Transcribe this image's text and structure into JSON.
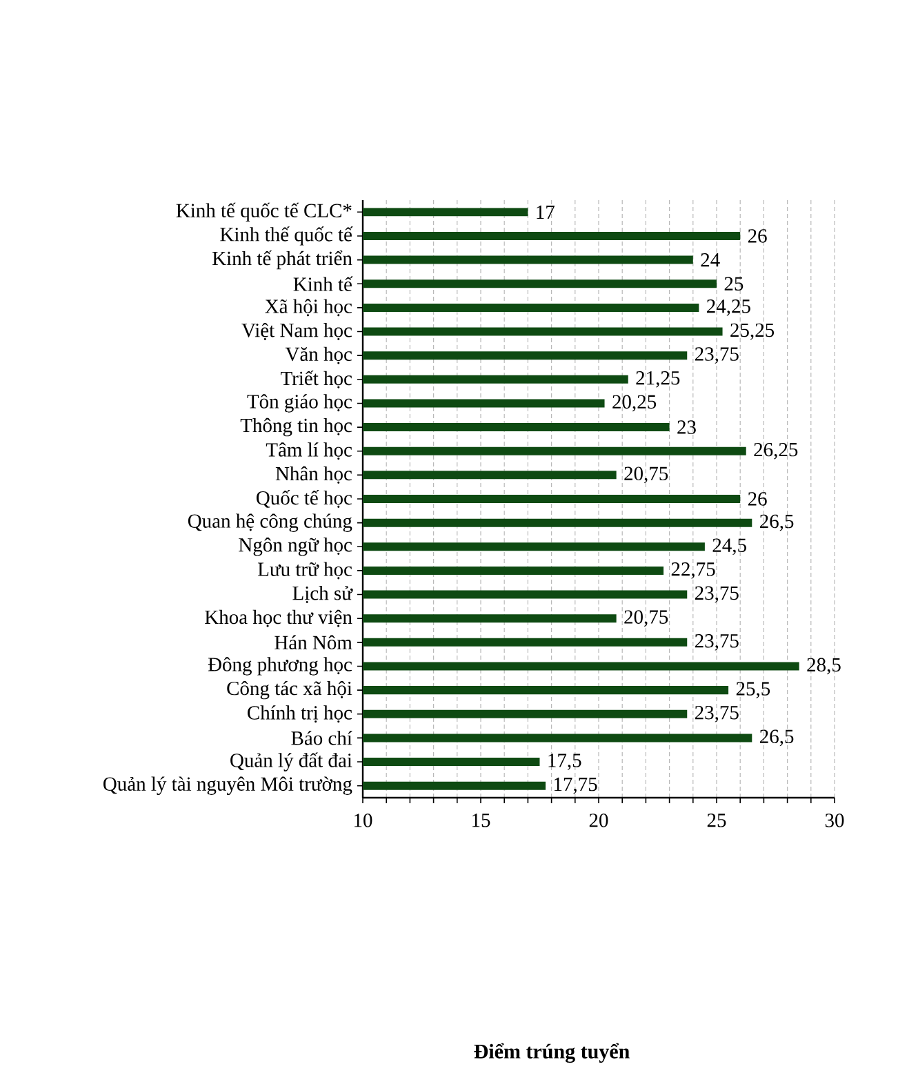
{
  "chart_data": {
    "type": "bar",
    "orientation": "horizontal",
    "annotations": [
      "Điểm trúng tuyển"
    ],
    "categories": [
      "Kinh tế quốc tế CLC*",
      "Kinh thế quốc tế",
      "Kinh tế phát triển",
      "Kinh tế",
      "Xã hội học",
      "Việt Nam học",
      "Văn học",
      "Triết học",
      "Tôn giáo học",
      "Thông tin học",
      "Tâm lí học",
      "Nhân học",
      "Quốc tế học",
      "Quan hệ công chúng",
      "Ngôn ngữ học",
      "Lưu trữ học",
      "Lịch sử",
      "Khoa học thư viện",
      "Hán Nôm",
      "Đông phương học",
      "Công tác xã hội",
      "Chính trị học",
      "Báo chí",
      "Quản lý đất đai",
      "Quản lý tài nguyên Môi trường"
    ],
    "values": [
      17,
      26,
      24,
      25,
      24.25,
      25.25,
      23.75,
      21.25,
      20.25,
      23,
      26.25,
      20.75,
      26,
      26.5,
      24.5,
      22.75,
      23.75,
      20.75,
      23.75,
      28.5,
      25.5,
      23.75,
      26.5,
      17.5,
      17.75
    ],
    "value_labels": [
      "17",
      "26",
      "24",
      "25",
      "24,25",
      "25,25",
      "23,75",
      "21,25",
      "20,25",
      "23",
      "26,25",
      "20,75",
      "26",
      "26,5",
      "24,5",
      "22,75",
      "23,75",
      "20,75",
      "23,75",
      "28,5",
      "25,5",
      "23,75",
      "26,5",
      "17,5",
      "17,75"
    ],
    "color": "#0e4a12",
    "xlim": [
      10,
      30
    ],
    "xticks": [
      10,
      {
        "value": 11,
        "label": null
      },
      {
        "value": 12,
        "label": null
      },
      {
        "value": 13,
        "label": null
      },
      {
        "value": 14,
        "label": null
      },
      15,
      {
        "value": 16,
        "label": null
      },
      {
        "value": 17,
        "label": null
      },
      {
        "value": 18,
        "label": null
      },
      {
        "value": 19,
        "label": null
      },
      20,
      {
        "value": 21,
        "label": null
      },
      {
        "value": 22,
        "label": null
      },
      {
        "value": 23,
        "label": null
      },
      {
        "value": 24,
        "label": null
      },
      25,
      {
        "value": 26,
        "label": null
      },
      {
        "value": 27,
        "label": null
      },
      {
        "value": 28,
        "label": null
      },
      {
        "value": 29,
        "label": null
      },
      30
    ],
    "grid": "x"
  }
}
